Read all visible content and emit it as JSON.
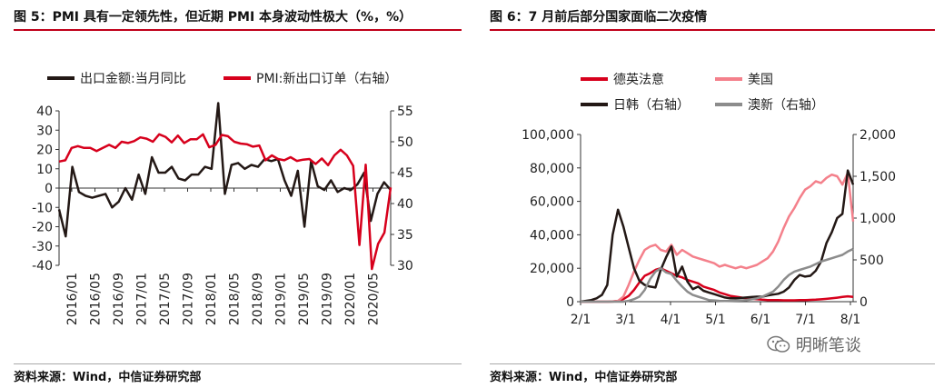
{
  "left": {
    "title": "图 5：PMI 具有一定领先性，但近期 PMI 本身波动性极大（%，%）",
    "source": "资料来源：Wind，中信证券研究部"
  },
  "right": {
    "title": "图 6：7 月前后部分国家面临二次疫情",
    "source": "资料来源：Wind，中信证券研究部"
  },
  "watermark": {
    "text": "明晰笔谈",
    "icon": "wechat-icon"
  },
  "colors": {
    "black": "#231815",
    "red": "#d7001c",
    "pink": "#f4808b",
    "gray": "#8c8c8c",
    "accent_rule": "#c0001a"
  },
  "chart_data": [
    {
      "type": "line",
      "title": "",
      "legend": [
        "出口金额:当月同比",
        "PMI:新出口订单（右轴）"
      ],
      "legend_placement": "top",
      "x_ticks": [
        "2016/01",
        "2016/05",
        "2016/09",
        "2017/01",
        "2017/05",
        "2017/09",
        "2018/01",
        "2018/05",
        "2018/09",
        "2019/01",
        "2019/05",
        "2019/09",
        "2020/01",
        "2020/05"
      ],
      "y_left": {
        "min": -40,
        "max": 40,
        "ticks": [
          "-40",
          "-30",
          "-20",
          "-10",
          "0",
          "10",
          "20",
          "30",
          "40"
        ]
      },
      "y_right": {
        "min": 30,
        "max": 55,
        "ticks": [
          "30",
          "35",
          "40",
          "45",
          "50",
          "55"
        ]
      },
      "series": [
        {
          "name": "出口金额:当月同比",
          "axis": "left",
          "color": "#231815",
          "values": [
            -11,
            -25,
            11,
            -2,
            -4,
            -5,
            -4,
            -3,
            -10,
            -7,
            0,
            -6,
            7,
            -3,
            16,
            8,
            8,
            11,
            5,
            4,
            7,
            7,
            11,
            10,
            44,
            -3,
            12,
            13,
            10,
            12,
            11,
            15,
            14,
            15,
            4,
            -4,
            9,
            -20,
            14,
            1,
            -1,
            4,
            -2,
            0,
            -1,
            2,
            8,
            -17,
            -3,
            3,
            -1
          ]
        },
        {
          "name": "PMI:新出口订单（右轴）",
          "axis": "right",
          "color": "#d7001c",
          "values": [
            46.8,
            47.0,
            49.0,
            49.3,
            49.0,
            49.0,
            48.5,
            49.0,
            49.5,
            49.0,
            50.0,
            49.8,
            50.1,
            50.7,
            50.5,
            50.0,
            51.2,
            50.8,
            49.9,
            51.0,
            49.8,
            50.4,
            50.4,
            51.2,
            49.1,
            49.5,
            51.1,
            50.9,
            50.0,
            49.7,
            49.6,
            49.2,
            49.4,
            47.0,
            47.8,
            47.2,
            47.0,
            47.5,
            46.9,
            47.1,
            47.2,
            46.4,
            47.3,
            46.2,
            47.8,
            48.7,
            47.8,
            46.1,
            33.3,
            46.3,
            29.4,
            33.5,
            35.3,
            42.6
          ]
        }
      ]
    },
    {
      "type": "line",
      "title": "",
      "legend": [
        "德英法意",
        "美国",
        "日韩（右轴）",
        "澳新（右轴）"
      ],
      "legend_placement": "top-left",
      "x_ticks": [
        "2/1",
        "3/1",
        "4/1",
        "5/1",
        "6/1",
        "7/1",
        "8/1"
      ],
      "y_left": {
        "min": 0,
        "max": 100000,
        "ticks": [
          "0",
          "20,000",
          "40,000",
          "60,000",
          "80,000",
          "100,000"
        ]
      },
      "y_right": {
        "min": 0,
        "max": 2000,
        "ticks": [
          "0",
          "500",
          "1,000",
          "1,500",
          "2,000"
        ]
      },
      "series": [
        {
          "name": "德英法意",
          "axis": "left",
          "color": "#d7001c",
          "values": [
            0,
            0,
            0,
            0,
            0,
            0,
            100,
            500,
            1500,
            3500,
            7000,
            11500,
            15500,
            17000,
            19000,
            20000,
            18500,
            17000,
            15500,
            14500,
            13000,
            12000,
            11000,
            9000,
            8000,
            7000,
            5500,
            4500,
            3500,
            3000,
            2500,
            2000,
            1800,
            1500,
            1200,
            1000,
            1000,
            900,
            800,
            800,
            800,
            900,
            1000,
            1100,
            1200,
            1400,
            1700,
            2000,
            2400,
            2800,
            3200,
            2900
          ]
        },
        {
          "name": "美国",
          "axis": "left",
          "color": "#f4808b",
          "values": [
            0,
            0,
            0,
            0,
            0,
            0,
            0,
            500,
            3000,
            10000,
            18000,
            25000,
            31000,
            33000,
            34000,
            31000,
            30000,
            34000,
            28000,
            31000,
            29000,
            27000,
            26000,
            25000,
            24000,
            23000,
            21000,
            22000,
            21000,
            20000,
            21000,
            20000,
            21000,
            22000,
            24000,
            26000,
            30000,
            36000,
            44000,
            51000,
            56000,
            62000,
            67000,
            69000,
            72000,
            71000,
            74000,
            76000,
            75000,
            70000,
            77000,
            48000
          ]
        },
        {
          "name": "日韩（右轴）",
          "axis": "right",
          "color": "#231815",
          "values": [
            0,
            10,
            20,
            40,
            80,
            200,
            800,
            1100,
            900,
            650,
            400,
            250,
            200,
            180,
            170,
            380,
            530,
            660,
            300,
            420,
            240,
            150,
            180,
            130,
            110,
            90,
            70,
            50,
            40,
            40,
            45,
            50,
            55,
            60,
            60,
            75,
            85,
            95,
            120,
            170,
            260,
            320,
            300,
            310,
            370,
            480,
            700,
            830,
            1000,
            1050,
            1570,
            1400
          ]
        },
        {
          "name": "澳新（右轴）",
          "axis": "right",
          "color": "#8c8c8c",
          "values": [
            0,
            0,
            0,
            0,
            0,
            0,
            0,
            0,
            0,
            10,
            30,
            60,
            140,
            270,
            360,
            400,
            350,
            330,
            250,
            180,
            120,
            80,
            60,
            40,
            20,
            15,
            10,
            8,
            10,
            12,
            15,
            20,
            28,
            40,
            60,
            90,
            120,
            180,
            260,
            320,
            360,
            380,
            400,
            420,
            450,
            480,
            500,
            520,
            540,
            560,
            600,
            630
          ]
        }
      ]
    }
  ]
}
